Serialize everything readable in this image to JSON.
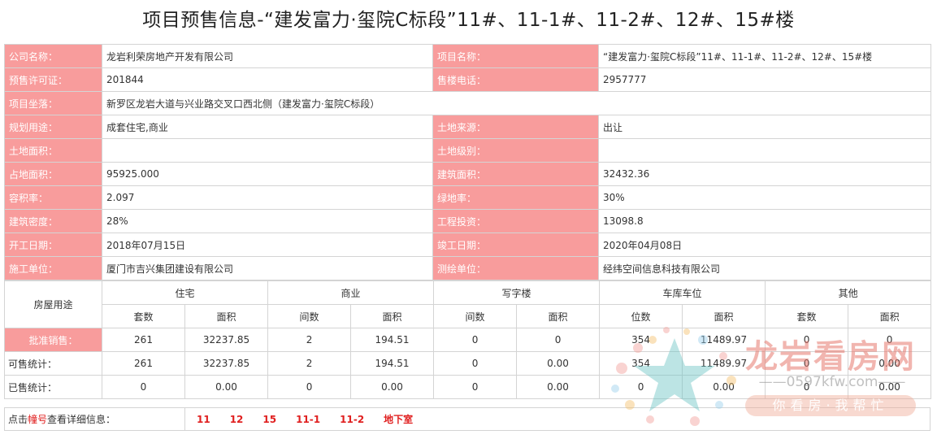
{
  "title": "项目预售信息-“建发富力·玺院C标段”11#、11-1#、11-2#、12#、15#楼",
  "info_rows": [
    [
      {
        "label": "公司名称：",
        "value": "龙岩利荣房地产开发有限公司"
      },
      {
        "label": "项目名称：",
        "value": "“建发富力·玺院C标段”11#、11-1#、11-2#、12#、15#楼"
      }
    ],
    [
      {
        "label": "预售许可证：",
        "value": "201844"
      },
      {
        "label": "售楼电话：",
        "value": "2957777"
      }
    ],
    [
      {
        "label": "项目坐落：",
        "value": "新罗区龙岩大道与兴业路交叉口西北侧（建发富力·玺院C标段）"
      }
    ],
    [
      {
        "label": "规划用途：",
        "value": "成套住宅,商业"
      },
      {
        "label": "土地来源：",
        "value": "出让"
      }
    ],
    [
      {
        "label": "土地面积：",
        "value": ""
      },
      {
        "label": "土地级别：",
        "value": ""
      }
    ],
    [
      {
        "label": "占地面积：",
        "value": "95925.000"
      },
      {
        "label": "建筑面积：",
        "value": "32432.36"
      }
    ],
    [
      {
        "label": "容积率：",
        "value": "2.097"
      },
      {
        "label": "绿地率：",
        "value": "30%"
      }
    ],
    [
      {
        "label": "建筑密度：",
        "value": "28%"
      },
      {
        "label": "工程投资：",
        "value": "13098.8"
      }
    ],
    [
      {
        "label": "开工日期：",
        "value": "2018年07月15日"
      },
      {
        "label": "竣工日期：",
        "value": "2020年04月08日"
      }
    ],
    [
      {
        "label": "施工单位：",
        "value": "厦门市吉兴集团建设有限公司"
      },
      {
        "label": "测绘单位：",
        "value": "经纬空间信息科技有限公司"
      }
    ]
  ],
  "stats": {
    "usage_header": "房屋用途",
    "groups": [
      "住宅",
      "商业",
      "写字楼",
      "车库车位",
      "其他"
    ],
    "subheaders": [
      "套数",
      "面积",
      "间数",
      "面积",
      "间数",
      "面积",
      "位数",
      "面积",
      "套数",
      "面积"
    ],
    "rows": [
      {
        "label": "批准销售：",
        "values": [
          "261",
          "32237.85",
          "2",
          "194.51",
          "0",
          "0",
          "354",
          "11489.97",
          "0",
          "0"
        ]
      },
      {
        "label": "可售统计：",
        "values": [
          "261",
          "32237.85",
          "2",
          "194.51",
          "0",
          "0.00",
          "354",
          "11489.97",
          "0",
          "0.00"
        ]
      },
      {
        "label": "已售统计：",
        "values": [
          "0",
          "0.00",
          "0",
          "0.00",
          "0",
          "0.00",
          "0",
          "0.00",
          "0",
          "0.00"
        ]
      }
    ]
  },
  "detail": {
    "label_prefix": "点击",
    "label_highlight": "幢号",
    "label_suffix": "查看详细信息：",
    "buildings": [
      "11",
      "12",
      "15",
      "11-1",
      "11-2",
      "地下室"
    ]
  },
  "watermark": {
    "brand": "龙岩看房网",
    "url": "——0597kfw.com——",
    "slogan": "你看房·我帮忙"
  }
}
